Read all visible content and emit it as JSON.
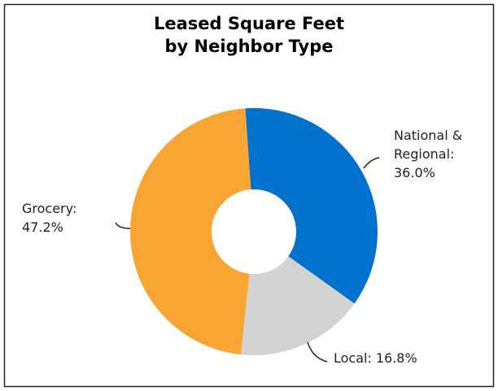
{
  "chart_data": {
    "type": "donut",
    "title": [
      "Leased Square Feet",
      "by Neighbor Type"
    ],
    "categories": [
      "National & Regional:",
      "Local:",
      "Grocery:"
    ],
    "values": [
      36.0,
      16.8,
      47.2
    ],
    "value_labels": [
      "36.0%",
      "16.8%",
      "47.2%"
    ],
    "colors": [
      "#0072ce",
      "#d3d3d3",
      "#f9a533"
    ]
  }
}
